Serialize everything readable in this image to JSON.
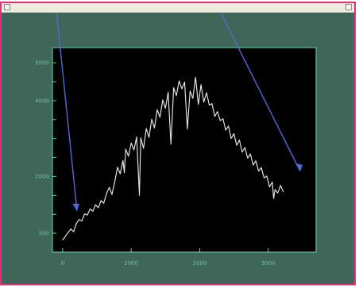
{
  "window": {
    "title": "",
    "accent_color": "#e0317a",
    "background_color": "#3f6658"
  },
  "chart_data": {
    "type": "line",
    "title": "",
    "subtitle": "",
    "xlabel": "",
    "ylabel": "",
    "xlim": [
      -150,
      3700
    ],
    "ylim": [
      0,
      5400
    ],
    "x_ticks": [
      0,
      1000,
      2000,
      3000
    ],
    "x_tick_labels": [
      "0",
      "1000",
      "2000",
      "3000"
    ],
    "y_ticks": [
      0,
      500,
      1000,
      1500,
      2000,
      2500,
      3000,
      3500,
      4000,
      4500,
      5000
    ],
    "y_tick_labels": [
      "",
      "500",
      "",
      "",
      "2000",
      "",
      "",
      "",
      "4000",
      "",
      "5000"
    ],
    "grid": false,
    "plot_background": "#000000",
    "axis_color": "#5fd6a8",
    "series": [
      {
        "color": "#e8e8e8",
        "points": [
          [
            0,
            320
          ],
          [
            40,
            420
          ],
          [
            80,
            520
          ],
          [
            120,
            610
          ],
          [
            160,
            540
          ],
          [
            200,
            760
          ],
          [
            240,
            860
          ],
          [
            280,
            820
          ],
          [
            320,
            1010
          ],
          [
            360,
            980
          ],
          [
            400,
            1140
          ],
          [
            440,
            1080
          ],
          [
            480,
            1250
          ],
          [
            520,
            1170
          ],
          [
            560,
            1360
          ],
          [
            600,
            1290
          ],
          [
            640,
            1550
          ],
          [
            680,
            1710
          ],
          [
            720,
            1520
          ],
          [
            760,
            1860
          ],
          [
            800,
            2240
          ],
          [
            840,
            2070
          ],
          [
            880,
            2420
          ],
          [
            900,
            2100
          ],
          [
            920,
            2720
          ],
          [
            960,
            2530
          ],
          [
            1000,
            2880
          ],
          [
            1040,
            2700
          ],
          [
            1080,
            3040
          ],
          [
            1120,
            1500
          ],
          [
            1140,
            3020
          ],
          [
            1180,
            2740
          ],
          [
            1220,
            3260
          ],
          [
            1260,
            3030
          ],
          [
            1300,
            3510
          ],
          [
            1340,
            3280
          ],
          [
            1380,
            3760
          ],
          [
            1420,
            3560
          ],
          [
            1460,
            4020
          ],
          [
            1500,
            3800
          ],
          [
            1540,
            4220
          ],
          [
            1580,
            2850
          ],
          [
            1620,
            4340
          ],
          [
            1660,
            4130
          ],
          [
            1700,
            4520
          ],
          [
            1740,
            4310
          ],
          [
            1780,
            4490
          ],
          [
            1820,
            3250
          ],
          [
            1860,
            4250
          ],
          [
            1900,
            4060
          ],
          [
            1940,
            4620
          ],
          [
            1980,
            3900
          ],
          [
            2020,
            4420
          ],
          [
            2060,
            3960
          ],
          [
            2100,
            4210
          ],
          [
            2140,
            3880
          ],
          [
            2180,
            3920
          ],
          [
            2220,
            3580
          ],
          [
            2260,
            3710
          ],
          [
            2300,
            3470
          ],
          [
            2340,
            3520
          ],
          [
            2380,
            3220
          ],
          [
            2420,
            3330
          ],
          [
            2460,
            3000
          ],
          [
            2500,
            3130
          ],
          [
            2540,
            2820
          ],
          [
            2580,
            2960
          ],
          [
            2620,
            2640
          ],
          [
            2660,
            2760
          ],
          [
            2700,
            2480
          ],
          [
            2740,
            2590
          ],
          [
            2780,
            2300
          ],
          [
            2820,
            2410
          ],
          [
            2860,
            2140
          ],
          [
            2900,
            2230
          ],
          [
            2940,
            1960
          ],
          [
            2980,
            2010
          ],
          [
            3020,
            1720
          ],
          [
            3060,
            1850
          ],
          [
            3080,
            1420
          ],
          [
            3100,
            1650
          ],
          [
            3140,
            1560
          ],
          [
            3180,
            1760
          ],
          [
            3220,
            1600
          ]
        ]
      }
    ]
  }
}
